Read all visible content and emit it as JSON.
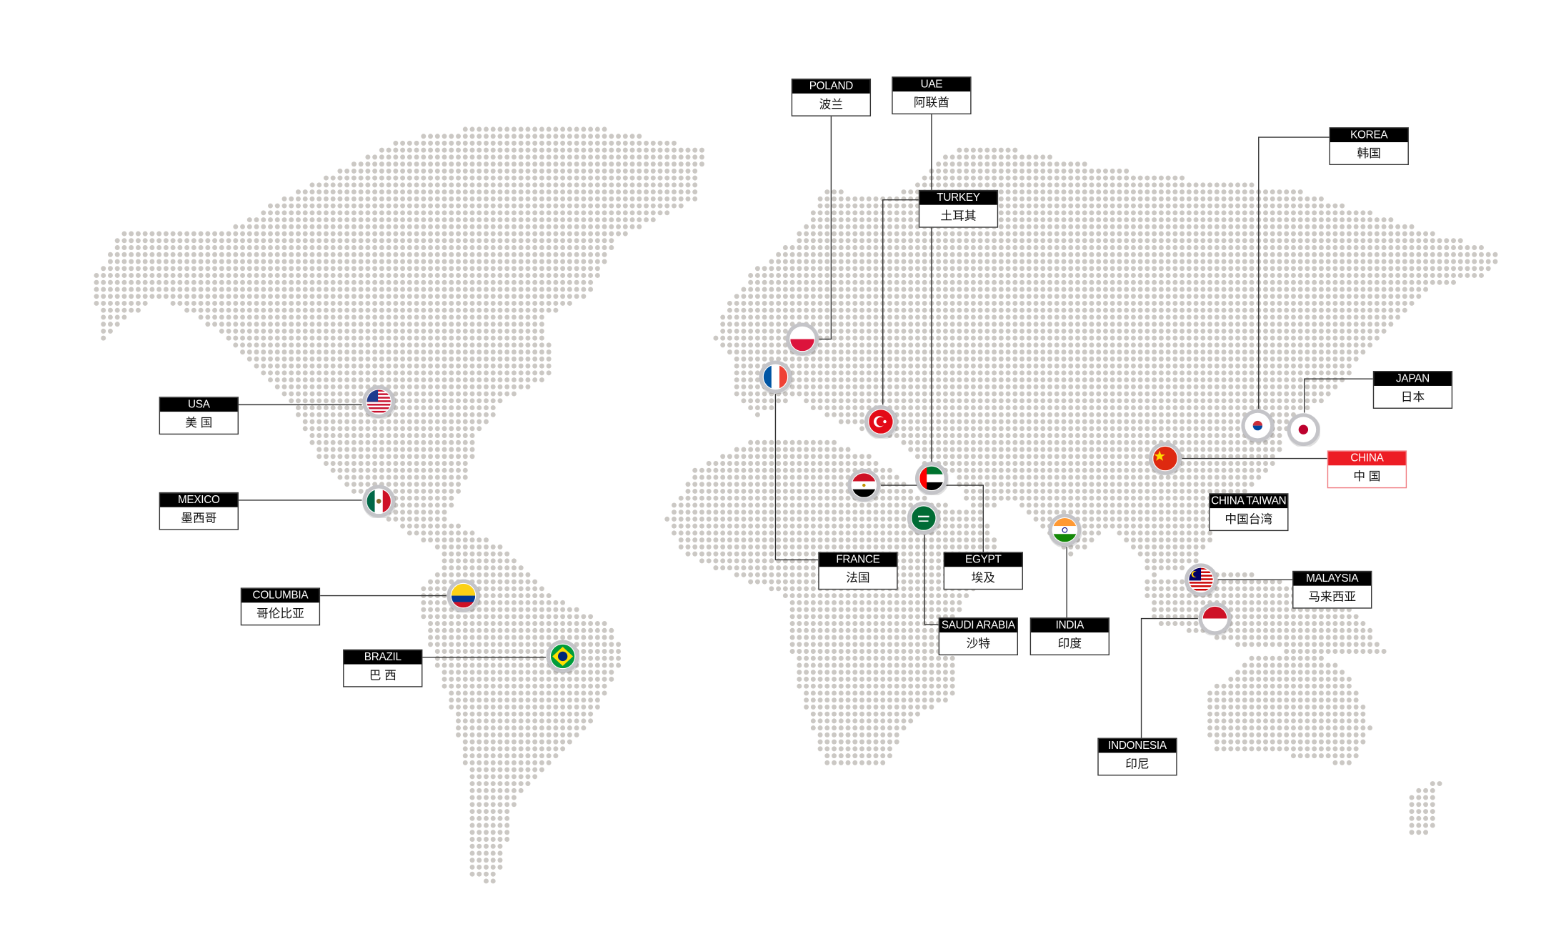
{
  "colors": {
    "dot": "#cbc8c4",
    "label_header": "#000000",
    "highlight": "#ed1c24",
    "line": "#333333"
  },
  "labels": [
    {
      "id": "usa",
      "en": "USA",
      "zh": "美 国",
      "flag_icon": "usa-flag-icon"
    },
    {
      "id": "mexico",
      "en": "MEXICO",
      "zh": "墨西哥",
      "flag_icon": "mexico-flag-icon"
    },
    {
      "id": "columbia",
      "en": "COLUMBIA",
      "zh": "哥伦比亚",
      "flag_icon": "colombia-flag-icon"
    },
    {
      "id": "brazil",
      "en": "BRAZIL",
      "zh": "巴 西",
      "flag_icon": "brazil-flag-icon"
    },
    {
      "id": "poland",
      "en": "POLAND",
      "zh": "波兰",
      "flag_icon": "poland-flag-icon"
    },
    {
      "id": "uae",
      "en": "UAE",
      "zh": "阿联酋",
      "flag_icon": "uae-flag-icon"
    },
    {
      "id": "turkey",
      "en": "TURKEY",
      "zh": "土耳其",
      "flag_icon": "turkey-flag-icon"
    },
    {
      "id": "korea",
      "en": "KOREA",
      "zh": "韩国",
      "flag_icon": "korea-flag-icon"
    },
    {
      "id": "japan",
      "en": "JAPAN",
      "zh": "日本",
      "flag_icon": "japan-flag-icon"
    },
    {
      "id": "china",
      "en": "CHINA",
      "zh": "中 国",
      "flag_icon": "china-flag-icon",
      "highlight": true
    },
    {
      "id": "taiwan",
      "en": "CHINA TAIWAN",
      "zh": "中国台湾"
    },
    {
      "id": "malaysia",
      "en": "MALAYSIA",
      "zh": "马来西亚",
      "flag_icon": "malaysia-flag-icon"
    },
    {
      "id": "indonesia",
      "en": "INDONESIA",
      "zh": "印尼",
      "flag_icon": "indonesia-flag-icon"
    },
    {
      "id": "india",
      "en": "INDIA",
      "zh": "印度",
      "flag_icon": "india-flag-icon"
    },
    {
      "id": "saudi",
      "en": "SAUDI ARABIA",
      "zh": "沙特",
      "flag_icon": "saudi-arabia-flag-icon"
    },
    {
      "id": "egypt",
      "en": "EGYPT",
      "zh": "埃及",
      "flag_icon": "egypt-flag-icon"
    },
    {
      "id": "france",
      "en": "FRANCE",
      "zh": "法国",
      "flag_icon": "france-flag-icon"
    }
  ]
}
